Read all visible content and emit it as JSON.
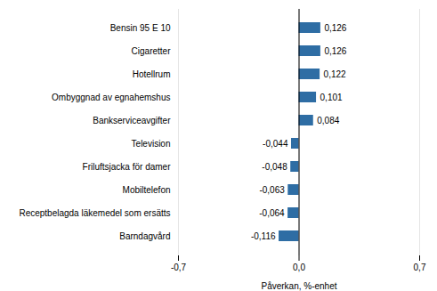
{
  "chart_data": {
    "type": "bar",
    "orientation": "horizontal",
    "categories": [
      "Barndagvård",
      "Receptbelagda läkemedel som ersätts",
      "Mobiltelefon",
      "Friluftsjacka för damer",
      "Television",
      "Bankserviceavgifter",
      "Ombyggnad av egnahemshus",
      "Hotellrum",
      "Cigaretter",
      "Bensin 95 E 10"
    ],
    "values": [
      -0.116,
      -0.064,
      -0.063,
      -0.048,
      -0.044,
      0.084,
      0.101,
      0.122,
      0.126,
      0.126
    ],
    "value_labels": [
      "-0,116",
      "-0,064",
      "-0,063",
      "-0,048",
      "-0,044",
      "0,084",
      "0,101",
      "0,122",
      "0,126",
      "0,126"
    ],
    "data_labels": true,
    "color": "#2E6DA4",
    "xlabel": "Påverkan, %-enhet",
    "xlim": [
      -0.7,
      0.7
    ],
    "xticks": [
      {
        "value": -0.7,
        "label": "-0,7"
      },
      {
        "value": 0.0,
        "label": "0,0"
      },
      {
        "value": 0.7,
        "label": "0,7"
      }
    ],
    "grid": true
  }
}
